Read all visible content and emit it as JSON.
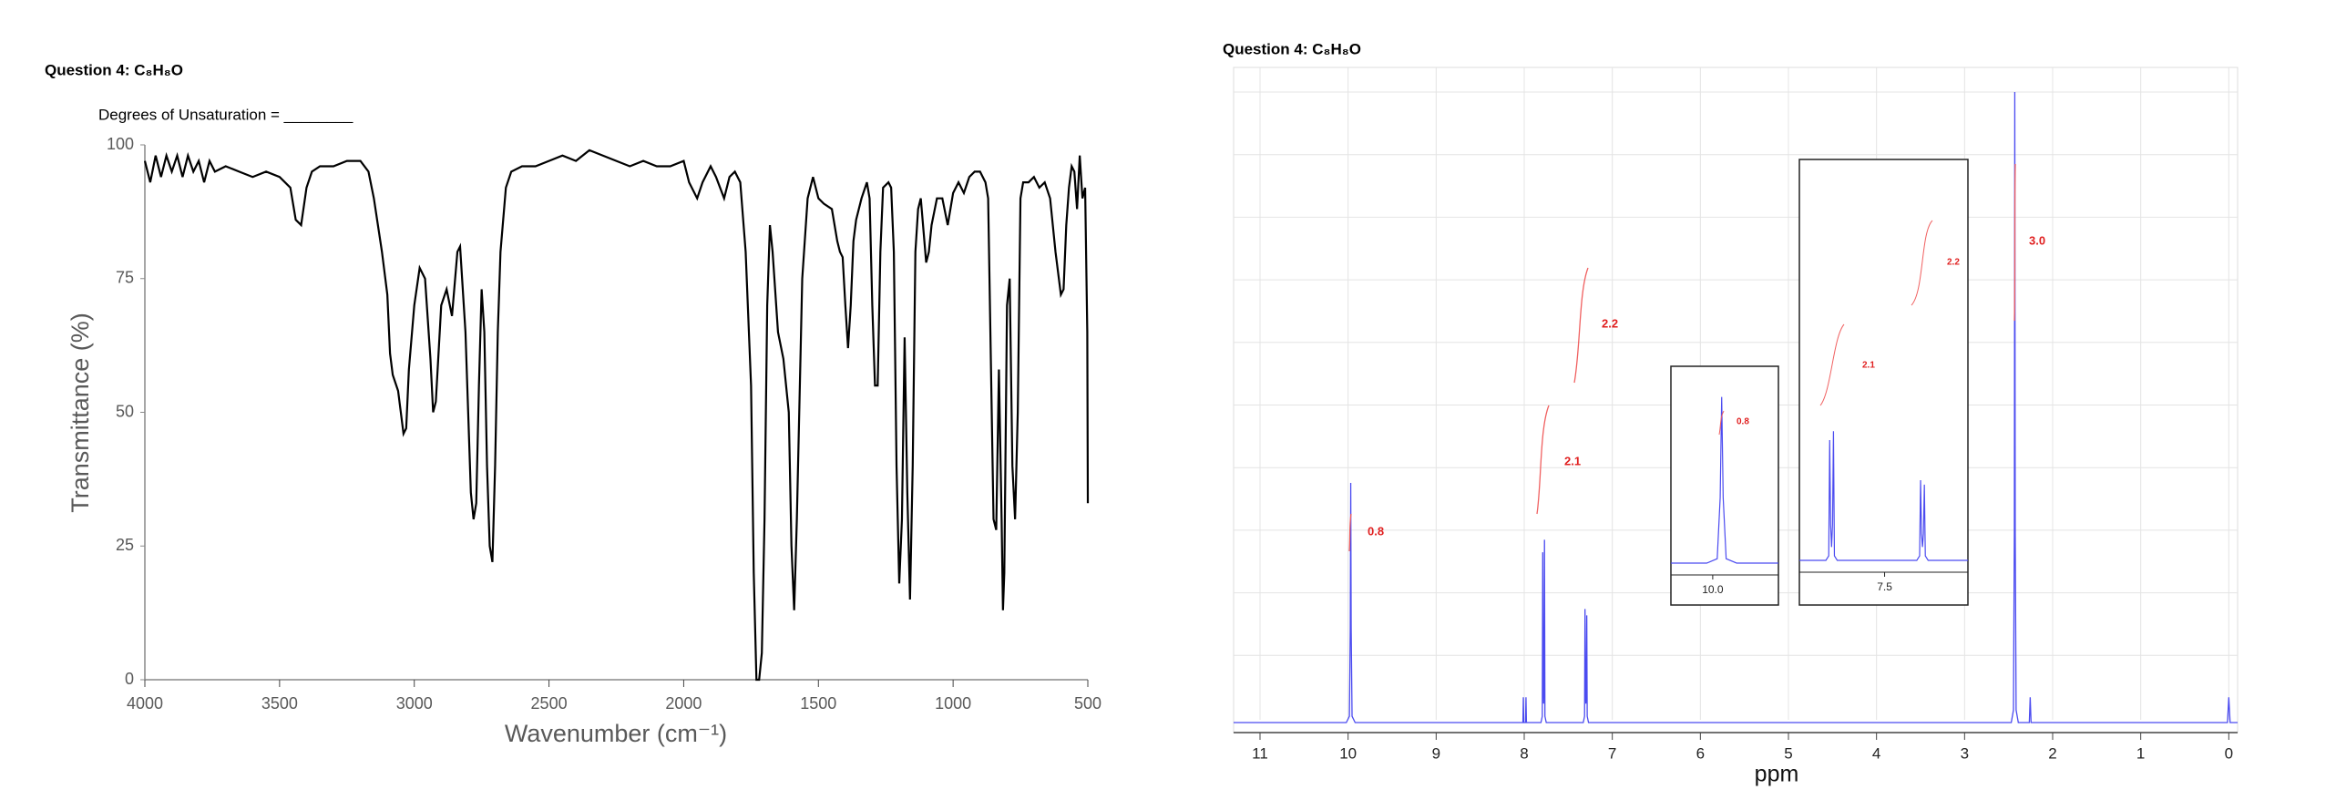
{
  "chart_data": [
    {
      "type": "line",
      "title": "Question 4:  C₈H₈O",
      "subtitle": "Degrees of Unsaturation = ________",
      "ylabel": "Transmittance (%)",
      "xlabel": "Wavenumber (cm⁻¹)",
      "xlim": [
        4000,
        500
      ],
      "ylim": [
        0,
        100
      ],
      "xticks": [
        4000,
        3500,
        3000,
        2500,
        2000,
        1500,
        1000,
        500
      ],
      "yticks": [
        0,
        25,
        50,
        75,
        100
      ],
      "x": [
        4000,
        3980,
        3960,
        3940,
        3920,
        3900,
        3880,
        3860,
        3840,
        3820,
        3800,
        3780,
        3760,
        3740,
        3700,
        3650,
        3600,
        3550,
        3500,
        3460,
        3440,
        3420,
        3400,
        3380,
        3350,
        3300,
        3250,
        3200,
        3170,
        3150,
        3120,
        3100,
        3090,
        3080,
        3060,
        3050,
        3040,
        3030,
        3020,
        3000,
        2980,
        2960,
        2940,
        2930,
        2920,
        2900,
        2880,
        2860,
        2840,
        2830,
        2810,
        2800,
        2790,
        2780,
        2770,
        2760,
        2750,
        2740,
        2730,
        2720,
        2710,
        2700,
        2690,
        2680,
        2660,
        2640,
        2600,
        2550,
        2500,
        2450,
        2400,
        2350,
        2300,
        2250,
        2200,
        2150,
        2100,
        2050,
        2000,
        1980,
        1950,
        1930,
        1900,
        1880,
        1850,
        1830,
        1810,
        1790,
        1770,
        1750,
        1740,
        1730,
        1720,
        1710,
        1700,
        1690,
        1680,
        1670,
        1650,
        1630,
        1610,
        1600,
        1590,
        1580,
        1560,
        1540,
        1520,
        1500,
        1480,
        1450,
        1430,
        1420,
        1410,
        1400,
        1390,
        1380,
        1370,
        1360,
        1340,
        1320,
        1310,
        1300,
        1290,
        1280,
        1270,
        1260,
        1240,
        1230,
        1220,
        1210,
        1200,
        1190,
        1180,
        1170,
        1160,
        1150,
        1140,
        1130,
        1120,
        1100,
        1090,
        1080,
        1060,
        1040,
        1020,
        1000,
        980,
        960,
        940,
        920,
        900,
        880,
        870,
        860,
        850,
        840,
        830,
        820,
        815,
        810,
        800,
        790,
        780,
        770,
        760,
        750,
        740,
        720,
        700,
        680,
        660,
        640,
        620,
        600,
        590,
        580,
        570,
        560,
        550,
        540,
        530,
        520,
        510,
        505,
        502,
        500
      ],
      "series": [
        {
          "color": "#000000",
          "values": [
            97,
            93,
            98,
            94,
            98,
            95,
            98,
            94,
            98,
            95,
            97,
            93,
            97,
            95,
            96,
            95,
            94,
            95,
            94,
            92,
            86,
            85,
            92,
            95,
            96,
            96,
            97,
            97,
            95,
            90,
            80,
            72,
            61,
            57,
            54,
            50,
            46,
            47,
            58,
            70,
            77,
            75,
            60,
            50,
            52,
            70,
            73,
            68,
            80,
            81,
            65,
            50,
            35,
            30,
            33,
            55,
            73,
            65,
            40,
            25,
            22,
            40,
            65,
            80,
            92,
            95,
            96,
            96,
            97,
            98,
            97,
            99,
            98,
            97,
            96,
            97,
            96,
            96,
            97,
            93,
            90,
            93,
            96,
            94,
            90,
            94,
            95,
            93,
            80,
            55,
            20,
            0,
            0,
            5,
            30,
            70,
            85,
            80,
            65,
            60,
            50,
            25,
            13,
            30,
            75,
            90,
            94,
            90,
            89,
            88,
            82,
            80,
            79,
            70,
            62,
            70,
            82,
            86,
            90,
            93,
            90,
            70,
            55,
            55,
            80,
            92,
            93,
            92,
            80,
            40,
            18,
            30,
            64,
            35,
            15,
            40,
            80,
            88,
            90,
            78,
            80,
            85,
            90,
            90,
            85,
            91,
            93,
            91,
            94,
            95,
            95,
            93,
            90,
            60,
            30,
            28,
            58,
            30,
            13,
            20,
            70,
            75,
            40,
            30,
            50,
            90,
            93,
            93,
            94,
            92,
            93,
            90,
            80,
            72,
            73,
            85,
            92,
            96,
            95,
            88,
            98,
            90,
            92,
            75,
            65,
            33
          ]
        }
      ]
    },
    {
      "type": "line",
      "title": "Question 4:  C₈H₈O",
      "xlabel": "ppm",
      "xlim": [
        11.3,
        -0.1
      ],
      "ylim": [
        0,
        100
      ],
      "grid": true,
      "xticks": [
        11,
        10,
        9,
        8,
        7,
        6,
        5,
        4,
        3,
        2,
        1,
        0
      ],
      "x": [
        11.3,
        10.02,
        9.985,
        9.975,
        9.97,
        9.965,
        9.955,
        9.92,
        8.03,
        8.015,
        8.01,
        8.005,
        7.985,
        7.98,
        7.975,
        7.96,
        7.81,
        7.795,
        7.79,
        7.785,
        7.78,
        7.775,
        7.77,
        7.765,
        7.75,
        7.33,
        7.315,
        7.31,
        7.305,
        7.3,
        7.295,
        7.29,
        7.285,
        7.27,
        2.47,
        2.445,
        2.435,
        2.43,
        2.425,
        2.415,
        2.39,
        2.265,
        2.255,
        2.245,
        0.015,
        0.0,
        -0.015,
        -0.1
      ],
      "series": [
        {
          "color": "#4b4bf0",
          "values": [
            0,
            0,
            1,
            15,
            38,
            15,
            1,
            0,
            0,
            0,
            4,
            0,
            0,
            4,
            0,
            0,
            0,
            1,
            27,
            8,
            3,
            8,
            29,
            1,
            0,
            0,
            1,
            18,
            6,
            3,
            6,
            17,
            1,
            0,
            0,
            2,
            30,
            100,
            30,
            2,
            0,
            0,
            4,
            0,
            0,
            4,
            0,
            0
          ]
        }
      ],
      "integrals": [
        "0.8",
        "2.1",
        "2.2",
        "3.0"
      ],
      "insets": [
        {
          "xlim": [
            10.14,
            9.78
          ],
          "ylim": [
            0,
            45
          ],
          "xticks": [
            {
              "value": 10,
              "label": "10.0"
            }
          ]
        },
        {
          "xlim": [
            7.95,
            7.06
          ],
          "ylim": [
            0,
            90
          ],
          "xticks": [
            7.5
          ]
        }
      ]
    }
  ]
}
